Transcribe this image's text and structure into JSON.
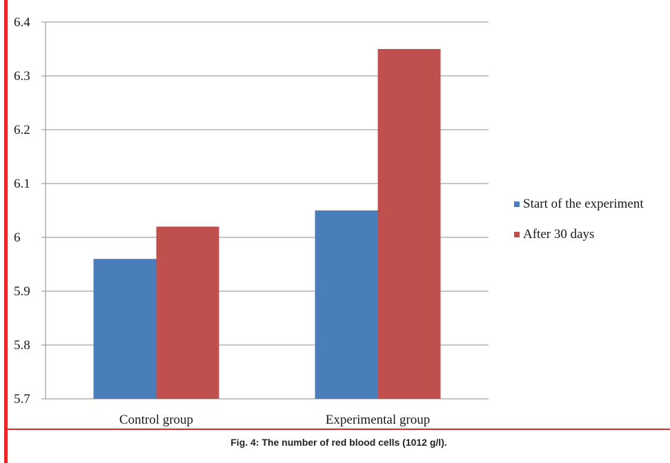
{
  "chart_data": {
    "type": "bar",
    "categories": [
      "Control group",
      "Experimental group"
    ],
    "series": [
      {
        "name": "Start of the experiment",
        "values": [
          5.96,
          6.05
        ],
        "color": "#4a7ebb"
      },
      {
        "name": "After 30 days",
        "values": [
          6.02,
          6.35
        ],
        "color": "#c0504d"
      }
    ],
    "yticks": [
      "5.7",
      "5.8",
      "5.9",
      "6",
      "6.1",
      "6.2",
      "6.3",
      "6.4"
    ],
    "ylim": [
      5.7,
      6.4
    ],
    "grid": true,
    "legend_position": "right"
  },
  "caption": "Fig. 4: The number of red blood cells (1012 g/l).",
  "colors": {
    "frame_accent": "#e8262a",
    "gridline": "#8c8c8c"
  }
}
